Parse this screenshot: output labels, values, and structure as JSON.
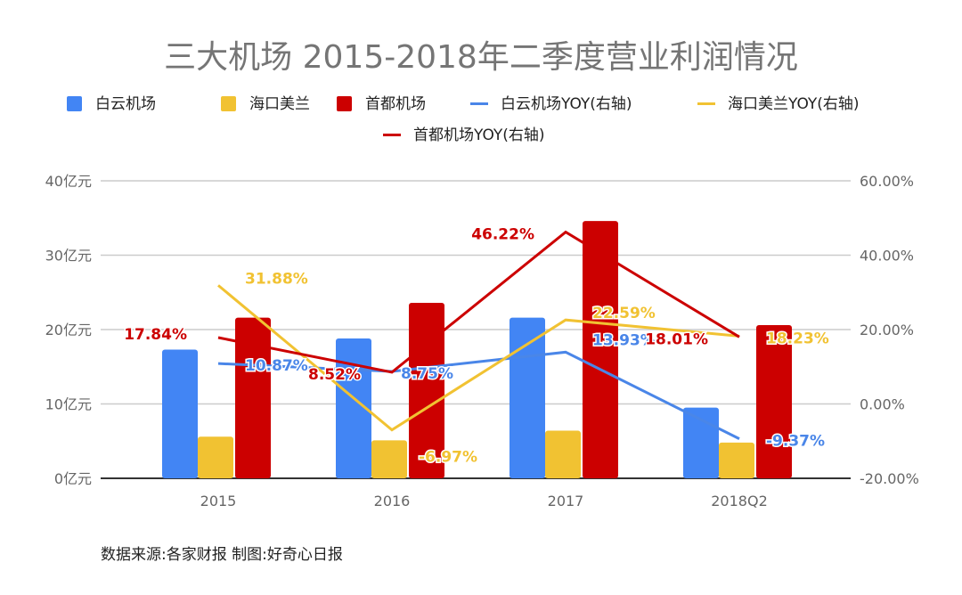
{
  "chart_data": {
    "type": "bar+line",
    "title": "三大机场 2015-2018年二季度营业利润情况",
    "categories": [
      "2015",
      "2016",
      "2017",
      "2018Q2"
    ],
    "left_axis": {
      "ticks": [
        "0亿元",
        "10亿元",
        "20亿元",
        "30亿元",
        "40亿元"
      ],
      "range": [
        0,
        40
      ]
    },
    "right_axis": {
      "ticks": [
        "-20.00%",
        "0.00%",
        "20.00%",
        "40.00%",
        "60.00%"
      ],
      "range": [
        -20,
        60
      ]
    },
    "grid": true,
    "legend_position": "top",
    "bar_series": [
      {
        "name": "白云机场",
        "color": "#4285f4",
        "values": [
          17.3,
          18.8,
          21.6,
          9.5
        ]
      },
      {
        "name": "海口美兰",
        "color": "#f1c232",
        "values": [
          5.6,
          5.1,
          6.4,
          4.8
        ]
      },
      {
        "name": "首都机场",
        "color": "#cc0000",
        "values": [
          21.6,
          23.6,
          34.6,
          20.6
        ]
      }
    ],
    "line_series": [
      {
        "name": "白云机场YOY(右轴)",
        "color": "#4a86e8",
        "values": [
          10.87,
          8.75,
          13.93,
          -9.37
        ],
        "labels": [
          "10.87%",
          "8.75%",
          "13.93%",
          "-9.37%"
        ]
      },
      {
        "name": "海口美兰YOY(右轴)",
        "color": "#f1c232",
        "values": [
          31.88,
          -6.97,
          22.59,
          18.23
        ],
        "labels": [
          "31.88%",
          "-6.97%",
          "22.59%",
          "18.23%"
        ]
      },
      {
        "name": "首都机场YOY(右轴)",
        "color": "#cc0000",
        "values": [
          17.84,
          8.52,
          46.22,
          18.01
        ],
        "labels": [
          "17.84%",
          "8.52%",
          "46.22%",
          "18.01%"
        ]
      }
    ]
  },
  "footnote": "数据来源:各家财报  制图:好奇心日报"
}
